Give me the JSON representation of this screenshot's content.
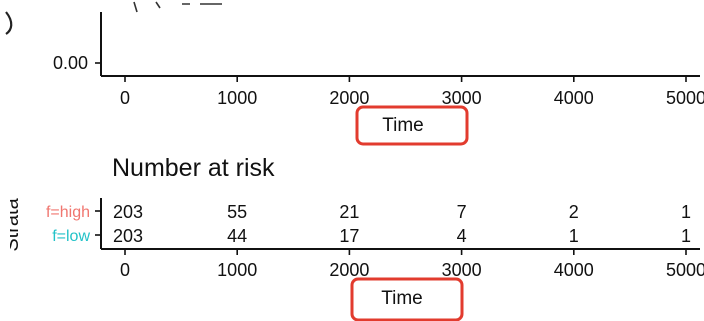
{
  "colors": {
    "high": "#f0766f",
    "low": "#22c2c8",
    "highlight": "#e23b2e",
    "axis": "#111111"
  },
  "chart_data": [
    {
      "type": "line",
      "title": "",
      "xlabel": "Time",
      "ylabel": "",
      "xlim": [
        0,
        5200
      ],
      "x_ticks": [
        0,
        1000,
        2000,
        3000,
        4000,
        5000
      ],
      "y_ticks_visible": [
        0.0
      ],
      "y_tick_labels": [
        "0.00"
      ],
      "grid": false,
      "note": ""
    },
    {
      "type": "table",
      "title": "Number at risk",
      "xlabel": "Time",
      "ylabel": "Strata",
      "xlim": [
        0,
        5200
      ],
      "x_ticks": [
        0,
        1000,
        2000,
        3000,
        4000,
        5000
      ],
      "series": [
        {
          "name": "f=high",
          "values": [
            203,
            55,
            21,
            7,
            2,
            1
          ]
        },
        {
          "name": "f=low",
          "values": [
            203,
            44,
            17,
            4,
            1,
            1
          ]
        }
      ]
    }
  ]
}
